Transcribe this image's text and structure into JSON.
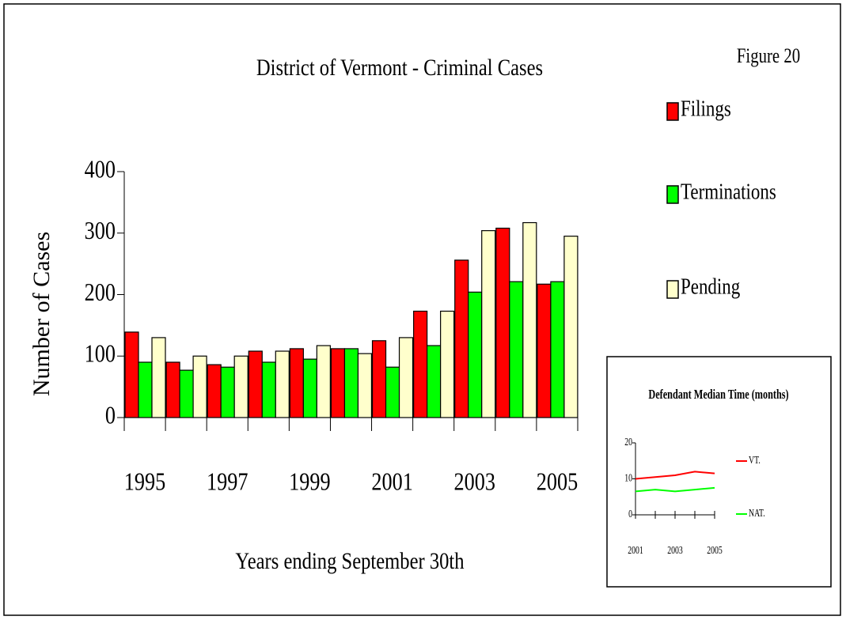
{
  "chart_data": [
    {
      "type": "bar",
      "title": "District of Vermont   -   Criminal Cases",
      "annotation": "Figure 20",
      "y_label": "Number of Cases",
      "x_label": "Years ending September 30th",
      "categories": [
        "1995",
        null,
        "1997",
        null,
        "1999",
        null,
        "2001",
        null,
        "2003",
        null,
        "2005"
      ],
      "series": [
        {
          "name": "Filings",
          "color": "#ff0000",
          "values": [
            139,
            90,
            86,
            108,
            112,
            112,
            125,
            173,
            256,
            308,
            217
          ]
        },
        {
          "name": "Terminations",
          "color": "#00ff00",
          "values": [
            90,
            77,
            82,
            90,
            95,
            112,
            82,
            117,
            204,
            221,
            221
          ]
        },
        {
          "name": "Pending",
          "color": "#ffffcc",
          "values": [
            130,
            100,
            100,
            108,
            117,
            104,
            130,
            173,
            304,
            317,
            295
          ]
        }
      ],
      "ylim": [
        0,
        400
      ],
      "yticks": [
        0,
        100,
        200,
        300,
        400
      ]
    },
    {
      "type": "line",
      "title": "Defendant Median Time (months)",
      "categories": [
        "2001",
        null,
        "2003",
        null,
        "2005"
      ],
      "series": [
        {
          "name": "VT.",
          "color": "#ff0000",
          "values": [
            10,
            10.5,
            11,
            12,
            11.5
          ]
        },
        {
          "name": "NAT.",
          "color": "#00ff00",
          "values": [
            6.5,
            7,
            6.5,
            7,
            7.5
          ]
        }
      ],
      "ylim": [
        0,
        20
      ],
      "yticks": [
        0,
        10,
        20
      ]
    }
  ]
}
